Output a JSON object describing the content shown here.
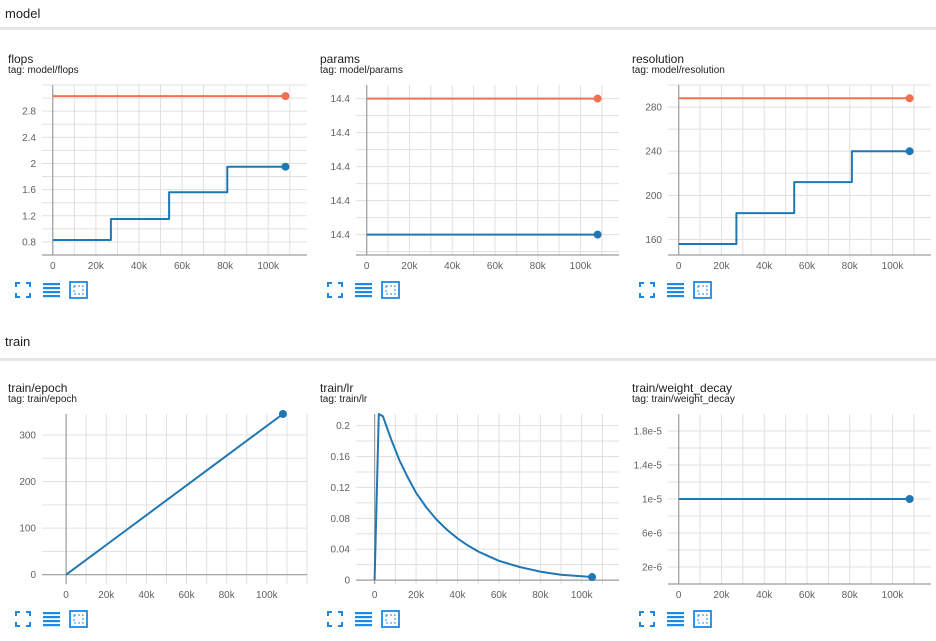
{
  "sections": [
    {
      "title": "model"
    },
    {
      "title": "train"
    }
  ],
  "colors": {
    "blue": "#1f77b4",
    "orange": "#f2704f",
    "grid": "#e0e0e0",
    "axis": "#9e9e9e",
    "icon": "#1e88e5"
  },
  "icons": [
    "fullscreen-icon",
    "lines-icon",
    "fit-domain-icon"
  ],
  "cards": [
    {
      "title": "flops",
      "tag": "tag: model/flops",
      "chart_data": {
        "type": "line",
        "xlim": [
          -5000,
          118000
        ],
        "ylim": [
          0.6,
          3.2
        ],
        "xticks": [
          0,
          20000,
          40000,
          60000,
          80000,
          100000
        ],
        "xtick_labels": [
          "0",
          "20k",
          "40k",
          "60k",
          "80k",
          "100k"
        ],
        "yticks": [
          0.8,
          1.2,
          1.6,
          2.0,
          2.4,
          2.8
        ],
        "ytick_labels": [
          "0.8",
          "1.2",
          "1.6",
          "2",
          "2.4",
          "2.8"
        ],
        "grid": true,
        "series": [
          {
            "color": "orange",
            "x": [
              0,
              108000
            ],
            "y": [
              3.03,
              3.03
            ]
          },
          {
            "color": "blue",
            "step": true,
            "x": [
              0,
              27000,
              27000,
              54000,
              54000,
              81000,
              81000,
              108000
            ],
            "y": [
              0.83,
              0.83,
              1.15,
              1.15,
              1.56,
              1.56,
              1.95,
              1.95
            ]
          }
        ]
      }
    },
    {
      "title": "params",
      "tag": "tag: model/params",
      "chart_data": {
        "type": "line",
        "xlim": [
          -5000,
          118000
        ],
        "ylim": [
          0,
          1
        ],
        "xticks": [
          0,
          20000,
          40000,
          60000,
          80000,
          100000
        ],
        "xtick_labels": [
          "0",
          "20k",
          "40k",
          "60k",
          "80k",
          "100k"
        ],
        "yticks": [
          0.12,
          0.32,
          0.52,
          0.72,
          0.92
        ],
        "ytick_labels": [
          "14.4",
          "14.4",
          "14.4",
          "14.4",
          "14.4"
        ],
        "grid": true,
        "series": [
          {
            "color": "orange",
            "x": [
              0,
              108000
            ],
            "y": [
              0.92,
              0.92
            ]
          },
          {
            "color": "blue",
            "x": [
              0,
              108000
            ],
            "y": [
              0.12,
              0.12
            ]
          }
        ]
      }
    },
    {
      "title": "resolution",
      "tag": "tag: model/resolution",
      "chart_data": {
        "type": "line",
        "xlim": [
          -5000,
          118000
        ],
        "ylim": [
          146,
          300
        ],
        "xticks": [
          0,
          20000,
          40000,
          60000,
          80000,
          100000
        ],
        "xtick_labels": [
          "0",
          "20k",
          "40k",
          "60k",
          "80k",
          "100k"
        ],
        "yticks": [
          160,
          200,
          240,
          280
        ],
        "ytick_labels": [
          "160",
          "200",
          "240",
          "280"
        ],
        "grid": true,
        "series": [
          {
            "color": "orange",
            "x": [
              0,
              108000
            ],
            "y": [
              288,
              288
            ]
          },
          {
            "color": "blue",
            "step": true,
            "x": [
              0,
              27000,
              27000,
              54000,
              54000,
              81000,
              81000,
              108000
            ],
            "y": [
              156,
              156,
              184,
              184,
              212,
              212,
              240,
              240
            ]
          }
        ]
      }
    },
    {
      "title": "train/epoch",
      "tag": "tag: train/epoch",
      "chart_data": {
        "type": "line",
        "xlim": [
          -12000,
          120000
        ],
        "ylim": [
          -20,
          345
        ],
        "xticks": [
          0,
          20000,
          40000,
          60000,
          80000,
          100000
        ],
        "xtick_labels": [
          "0",
          "20k",
          "40k",
          "60k",
          "80k",
          "100k"
        ],
        "yticks": [
          0,
          100,
          200,
          300
        ],
        "ytick_labels": [
          "0",
          "100",
          "200",
          "300"
        ],
        "grid": true,
        "series": [
          {
            "color": "blue",
            "x": [
              0,
              108000
            ],
            "y": [
              0,
              345
            ]
          }
        ]
      }
    },
    {
      "title": "train/lr",
      "tag": "tag: train/lr",
      "chart_data": {
        "type": "line",
        "xlim": [
          -9000,
          118000
        ],
        "ylim": [
          -0.005,
          0.215
        ],
        "xticks": [
          0,
          20000,
          40000,
          60000,
          80000,
          100000
        ],
        "xtick_labels": [
          "0",
          "20k",
          "40k",
          "60k",
          "80k",
          "100k"
        ],
        "yticks": [
          0,
          0.04,
          0.08,
          0.12,
          0.16,
          0.2
        ],
        "ytick_labels": [
          "0",
          "0.04",
          "0.08",
          "0.12",
          "0.16",
          "0.2"
        ],
        "grid": true,
        "series": [
          {
            "color": "blue",
            "x": [
              0,
              2000,
              4000,
              8000,
              12000,
              16000,
              20000,
              25000,
              30000,
              35000,
              40000,
              45000,
              50000,
              55000,
              60000,
              65000,
              70000,
              75000,
              80000,
              85000,
              90000,
              95000,
              100000,
              105000
            ],
            "y": [
              0,
              0.215,
              0.212,
              0.182,
              0.155,
              0.133,
              0.113,
              0.094,
              0.078,
              0.065,
              0.054,
              0.045,
              0.037,
              0.031,
              0.025,
              0.021,
              0.017,
              0.014,
              0.011,
              0.009,
              0.007,
              0.006,
              0.005,
              0.004
            ]
          }
        ]
      }
    },
    {
      "title": "train/weight_decay",
      "tag": "tag: train/weight_decay",
      "chart_data": {
        "type": "line",
        "xlim": [
          -5000,
          118000
        ],
        "ylim": [
          0,
          2e-05
        ],
        "xticks": [
          0,
          20000,
          40000,
          60000,
          80000,
          100000
        ],
        "xtick_labels": [
          "0",
          "20k",
          "40k",
          "60k",
          "80k",
          "100k"
        ],
        "yticks": [
          2e-06,
          6e-06,
          1e-05,
          1.4e-05,
          1.8e-05
        ],
        "ytick_labels": [
          "2e-6",
          "6e-6",
          "1e-5",
          "1.4e-5",
          "1.8e-5"
        ],
        "grid": true,
        "series": [
          {
            "color": "blue",
            "x": [
              0,
              108000
            ],
            "y": [
              1e-05,
              1e-05
            ]
          }
        ]
      }
    }
  ]
}
